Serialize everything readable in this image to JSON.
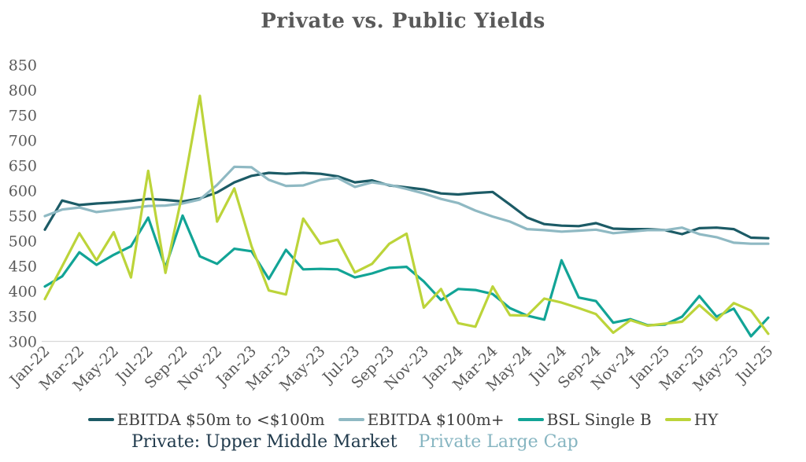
{
  "title": "Private vs. Public Yields",
  "footnotes": {
    "private_umm": "Private: Upper Middle Market",
    "private_large_cap": "Private Large Cap"
  },
  "colors": {
    "title_text": "#595959",
    "axis_text": "#595959",
    "axis_line": "#d9d9d9",
    "legend_text": "#3f3f3f",
    "private_umm": "#203A4C",
    "private_large_cap": "#86B5C1"
  },
  "chart_data": {
    "type": "line",
    "title": "Private vs. Public Yields",
    "grid": false,
    "legend_position": "bottom",
    "ylim": [
      300,
      850
    ],
    "ytick_step": 50,
    "yticks": [
      850,
      800,
      750,
      700,
      650,
      600,
      550,
      500,
      450,
      400,
      350,
      300
    ],
    "x_tick_step": 2,
    "categories": [
      "Jan-22",
      "Feb-22",
      "Mar-22",
      "Apr-22",
      "May-22",
      "Jun-22",
      "Jul-22",
      "Aug-22",
      "Sep-22",
      "Oct-22",
      "Nov-22",
      "Dec-22",
      "Jan-23",
      "Feb-23",
      "Mar-23",
      "Apr-23",
      "May-23",
      "Jun-23",
      "Jul-23",
      "Aug-23",
      "Sep-23",
      "Oct-23",
      "Nov-23",
      "Dec-23",
      "Jan-24",
      "Feb-24",
      "Mar-24",
      "Apr-24",
      "May-24",
      "Jun-24",
      "Jul-24",
      "Aug-24",
      "Sep-24",
      "Oct-24",
      "Nov-24",
      "Dec-24",
      "Jan-25",
      "Feb-25",
      "Mar-25",
      "Apr-25",
      "May-25",
      "Jun-25",
      "Jul-25"
    ],
    "series": [
      {
        "name": "EBITDA $50m to <$100m",
        "color": "#1C5B66",
        "values": [
          523,
          581,
          572,
          575,
          577,
          580,
          584,
          582,
          579,
          585,
          597,
          617,
          630,
          636,
          634,
          636,
          634,
          629,
          617,
          621,
          611,
          607,
          603,
          595,
          593,
          596,
          598,
          573,
          547,
          534,
          531,
          530,
          536,
          525,
          524,
          524,
          522,
          514,
          526,
          527,
          524,
          507,
          506
        ]
      },
      {
        "name": "EBITDA $100m+",
        "color": "#8FB9C3",
        "values": [
          550,
          563,
          567,
          558,
          562,
          566,
          570,
          571,
          575,
          583,
          612,
          648,
          647,
          622,
          610,
          611,
          622,
          626,
          608,
          617,
          612,
          604,
          595,
          584,
          576,
          561,
          549,
          539,
          524,
          522,
          519,
          521,
          523,
          516,
          519,
          522,
          522,
          527,
          514,
          508,
          497,
          495,
          495
        ]
      },
      {
        "name": "BSL Single B",
        "color": "#12A496",
        "values": [
          410,
          430,
          478,
          453,
          473,
          490,
          547,
          448,
          551,
          470,
          455,
          485,
          480,
          425,
          483,
          444,
          445,
          444,
          428,
          436,
          447,
          449,
          420,
          383,
          405,
          403,
          395,
          367,
          352,
          344,
          462,
          388,
          381,
          338,
          345,
          333,
          334,
          350,
          391,
          350,
          366,
          311,
          348
        ]
      },
      {
        "name": "HY",
        "color": "#BCD43A",
        "values": [
          385,
          450,
          516,
          462,
          518,
          428,
          640,
          437,
          597,
          789,
          539,
          605,
          490,
          402,
          394,
          545,
          495,
          503,
          438,
          455,
          495,
          515,
          368,
          405,
          337,
          330,
          410,
          353,
          352,
          386,
          378,
          367,
          355,
          318,
          343,
          332,
          336,
          340,
          373,
          343,
          377,
          362,
          316
        ]
      }
    ]
  }
}
